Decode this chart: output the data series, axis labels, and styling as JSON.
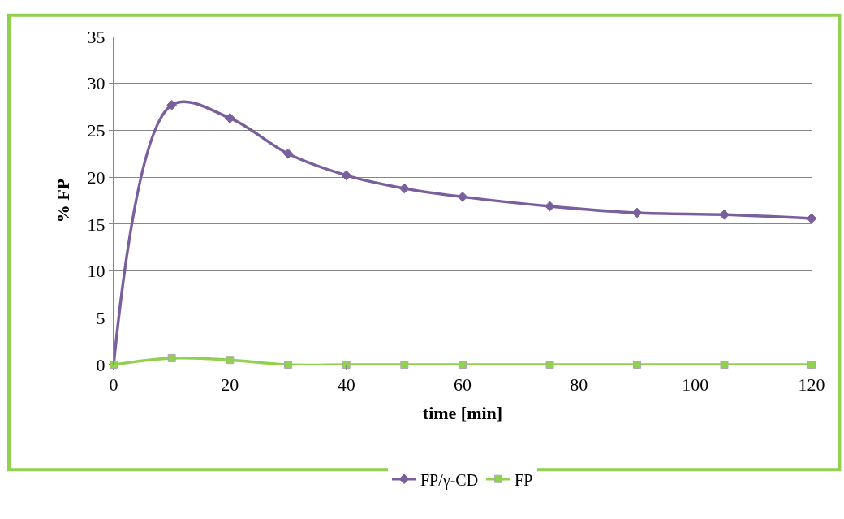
{
  "chart_data": {
    "type": "line",
    "xlabel": "time [min]",
    "ylabel": "% FP",
    "x": [
      0,
      10,
      20,
      30,
      40,
      50,
      60,
      75,
      90,
      105,
      120
    ],
    "series": [
      {
        "name": "FP/γ-CD",
        "color": "#7a5f9e",
        "marker": "diamond",
        "values": [
          0,
          27.7,
          26.3,
          22.5,
          20.2,
          18.8,
          17.9,
          16.9,
          16.2,
          16.0,
          15.6
        ]
      },
      {
        "name": "FP",
        "color": "#92d050",
        "marker": "square",
        "values": [
          0,
          0.7,
          0.5,
          0,
          0,
          0,
          0,
          0,
          0,
          0,
          0
        ]
      }
    ],
    "xlim": [
      0,
      120
    ],
    "xticks": [
      0,
      20,
      40,
      60,
      80,
      100,
      120
    ],
    "ylim": [
      0,
      35
    ],
    "yticks": [
      0,
      5,
      10,
      15,
      20,
      25,
      30,
      35
    ],
    "grid": "y",
    "legend": "bottom",
    "line_style": "solid"
  }
}
